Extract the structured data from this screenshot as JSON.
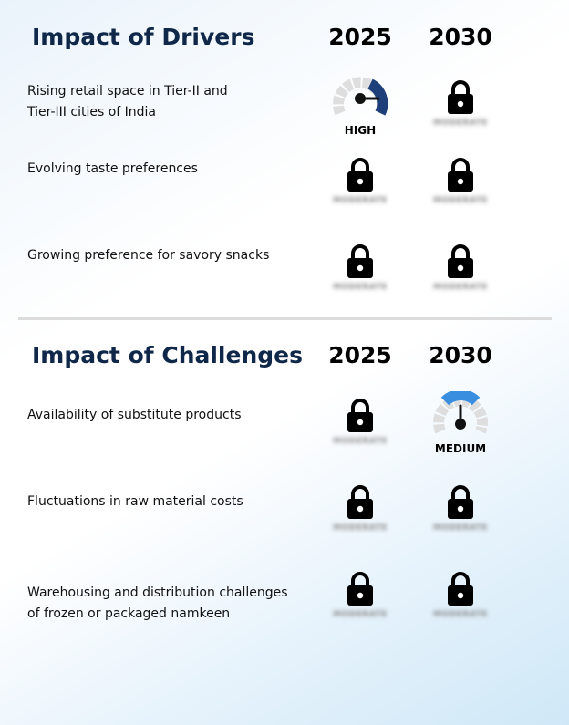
{
  "drivers": {
    "title": "Impact of Drivers",
    "year_2025": "2025",
    "year_2030": "2030",
    "rows": [
      {
        "label_line1": "Rising retail space in Tier-II and",
        "label_line2": "Tier-III cities of India",
        "c2025": "HIGH",
        "c2030": "MODERATE"
      },
      {
        "label_line1": "Evolving taste preferences",
        "label_line2": "",
        "c2025": "MODERATE",
        "c2030": "MODERATE"
      },
      {
        "label_line1": "Growing preference for savory snacks",
        "label_line2": "",
        "c2025": "MODERATE",
        "c2030": "MODERATE"
      }
    ]
  },
  "challenges": {
    "title": "Impact of Challenges",
    "year_2025": "2025",
    "year_2030": "2030",
    "rows": [
      {
        "label_line1": "Availability of substitute products",
        "label_line2": "",
        "c2025": "MODERATE",
        "c2030": "MEDIUM"
      },
      {
        "label_line1": "Fluctuations in raw material costs",
        "label_line2": "",
        "c2025": "MODERATE",
        "c2030": "MODERATE"
      },
      {
        "label_line1": "Warehousing and distribution challenges",
        "label_line2": "of frozen or packaged namkeen",
        "c2025": "MODERATE",
        "c2030": "MODERATE"
      }
    ]
  },
  "colors": {
    "title": "#0f2748",
    "gauge_high": "#1f3f7a",
    "gauge_medium": "#3a8ee0",
    "gauge_track": "#dedede"
  },
  "icons": {
    "locked_cell": "lock-icon",
    "rated_cell": "gauge-icon"
  }
}
